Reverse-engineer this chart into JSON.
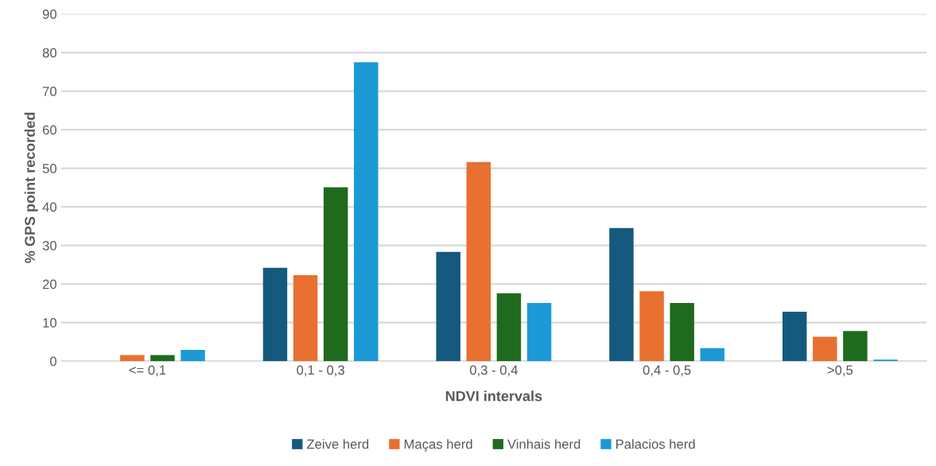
{
  "chart_data": {
    "type": "bar",
    "xlabel": "NDVI intervals",
    "ylabel": "% GPS point recorded",
    "categories": [
      "<= 0,1",
      "0,1 - 0,3",
      "0,3 - 0,4",
      "0,4 - 0,5",
      ">0,5"
    ],
    "series": [
      {
        "name": "Zeive herd",
        "color": "#155a7e",
        "values": [
          0,
          24.2,
          28.3,
          34.5,
          12.8
        ]
      },
      {
        "name": "Maças herd",
        "color": "#e87030",
        "values": [
          1.6,
          22.3,
          51.6,
          18.1,
          6.3
        ]
      },
      {
        "name": "Vinhais herd",
        "color": "#1e6b1e",
        "values": [
          1.6,
          45.1,
          17.6,
          15.1,
          7.8
        ]
      },
      {
        "name": "Palacios herd",
        "color": "#1c9ad6",
        "values": [
          2.9,
          77.5,
          15.1,
          3.4,
          0.4
        ]
      }
    ],
    "ylim": [
      0,
      90
    ],
    "yticks": [
      0,
      10,
      20,
      30,
      40,
      50,
      60,
      70,
      80,
      90
    ],
    "grid": "y",
    "legend": "bottom"
  }
}
